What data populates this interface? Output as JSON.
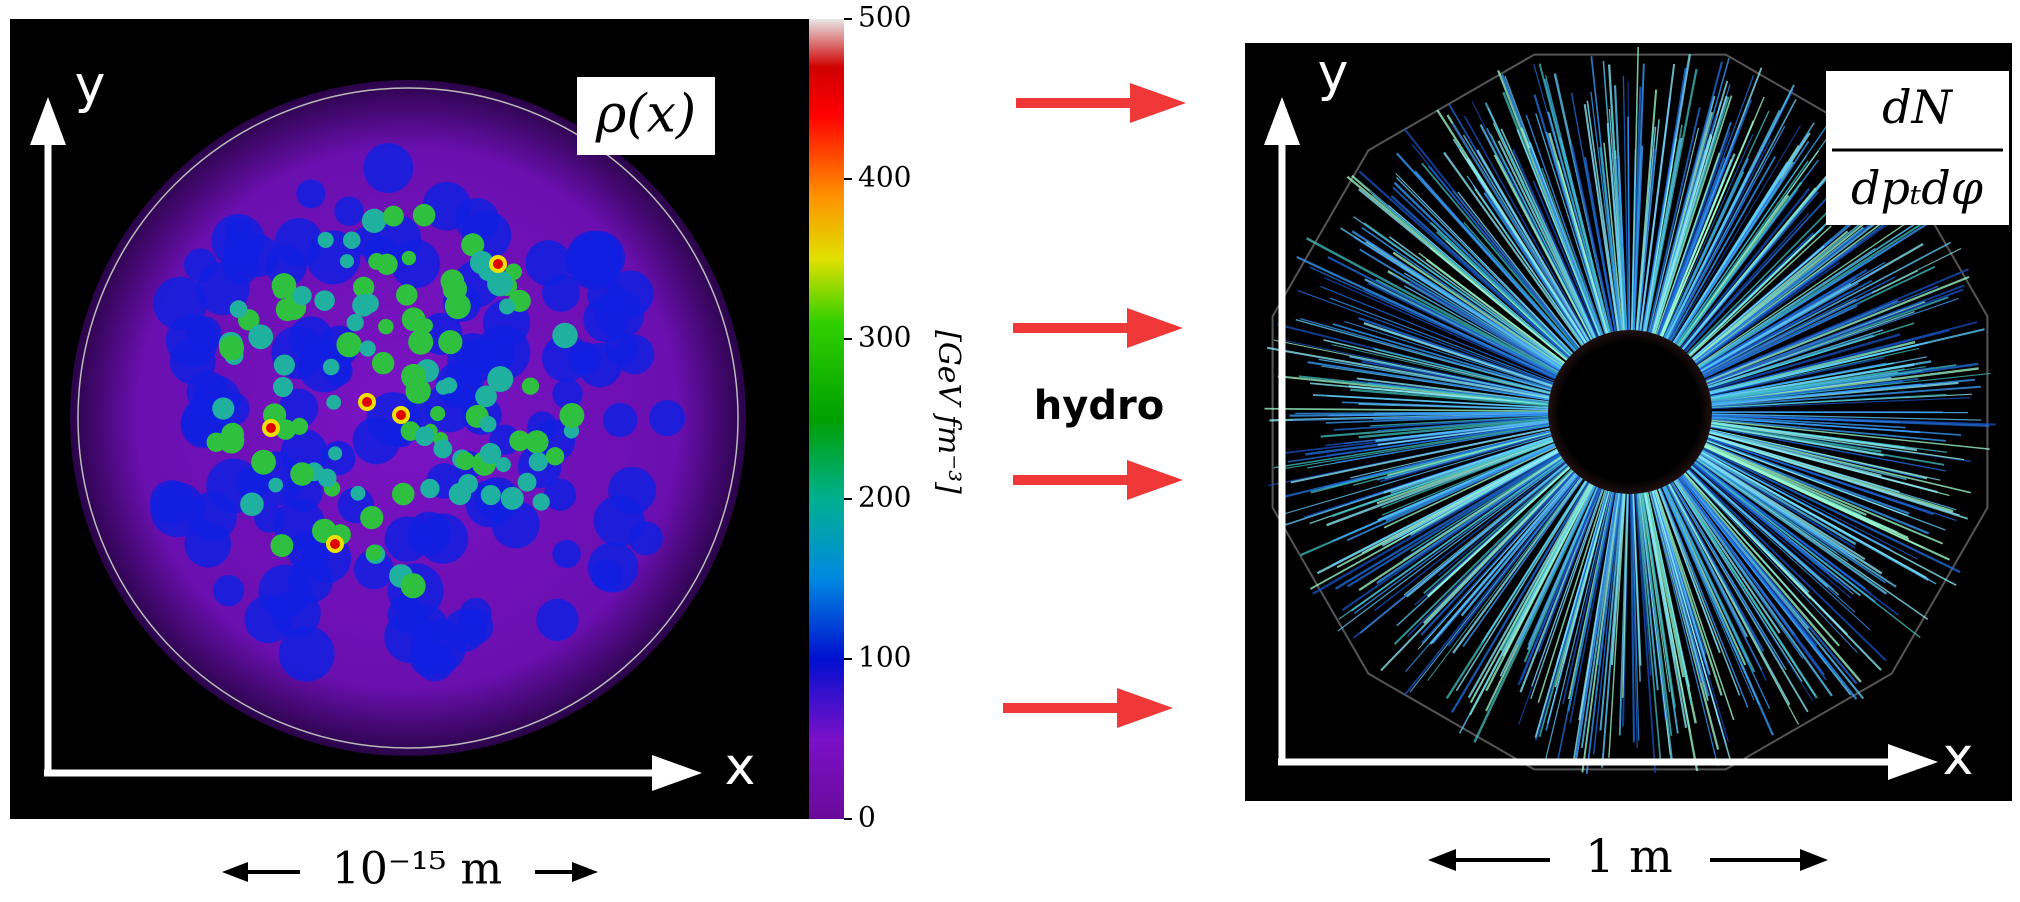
{
  "left_panel": {
    "y_axis_label": "y",
    "x_axis_label": "x",
    "quantity": "ρ(x)",
    "colorbar": {
      "label": "[GeV fm⁻³]",
      "ticks": [
        0,
        100,
        200,
        300,
        400,
        500
      ]
    },
    "scale": "10⁻¹⁵ m"
  },
  "middle": {
    "label": "hydro"
  },
  "right_panel": {
    "y_axis_label": "y",
    "x_axis_label": "x",
    "quantity_numerator": "dN",
    "quantity_denominator": "dpₜdφ",
    "scale": "1 m"
  }
}
